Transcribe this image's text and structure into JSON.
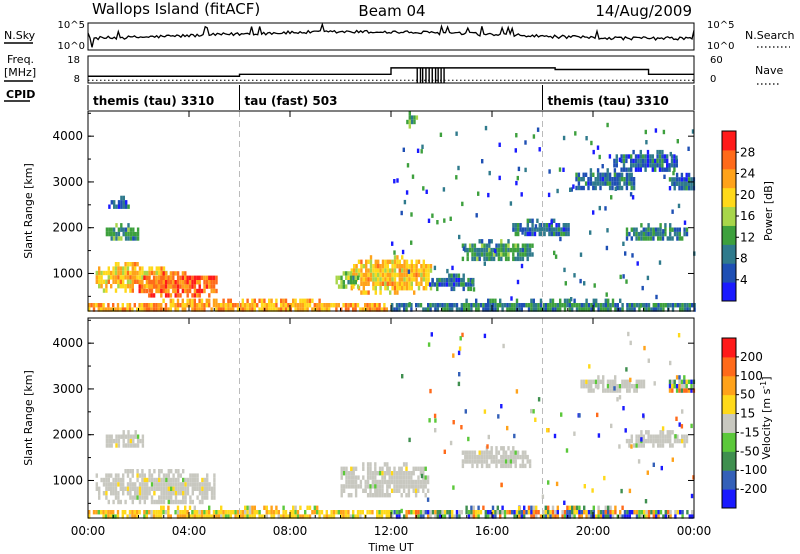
{
  "header": {
    "station": "Wallops Island (fitACF)",
    "beam": "Beam 04",
    "date": "14/Aug/2009"
  },
  "aux": {
    "nsky_label": "N.Sky",
    "nsearch_label": "N.Search",
    "freq_label_1": "Freq.",
    "freq_label_2": "[MHz]",
    "nave_label": "Nave",
    "cpid_label": "CPID",
    "nsky_ticks": [
      "10^5",
      "10^0"
    ],
    "nsearch_ticks": [
      "10^5",
      "10^0"
    ],
    "freq_ticks": [
      "18",
      "8"
    ],
    "nave_ticks": [
      "60",
      "0"
    ],
    "cpid_segments": [
      {
        "label": "themis (tau) 3310",
        "start_hour": 0
      },
      {
        "label": "tau (fast) 503",
        "start_hour": 6
      },
      {
        "label": "themis (tau) 3310",
        "start_hour": 18
      }
    ]
  },
  "chart_data": [
    {
      "type": "heatmap",
      "title": "Power",
      "xlabel": "Time UT",
      "ylabel": "Slant Range [km]",
      "x_ticks": [
        "00:00",
        "04:00",
        "08:00",
        "12:00",
        "16:00",
        "20:00",
        "00:00"
      ],
      "xlim_hours": [
        0,
        24
      ],
      "y_ticks": [
        "1000",
        "2000",
        "3000",
        "4000"
      ],
      "ylim_km": [
        180,
        4550
      ],
      "colorbar": {
        "label": "Power [dB]",
        "ticks": [
          "4",
          "8",
          "12",
          "16",
          "20",
          "24",
          "28"
        ],
        "range": [
          0,
          30
        ],
        "colors": [
          "#1a1aff",
          "#1e4fb4",
          "#2f7a8c",
          "#3da03d",
          "#a8d64a",
          "#ffd91a",
          "#ffa21a",
          "#ff6a1a",
          "#ff1a1a"
        ]
      },
      "echo_regions": [
        {
          "t0": 0.3,
          "t1": 3.2,
          "r0": 650,
          "r1": 1250,
          "level": 20
        },
        {
          "t0": 2.0,
          "t1": 5.1,
          "r0": 550,
          "r1": 1050,
          "level": 26
        },
        {
          "t0": 0.7,
          "t1": 2.0,
          "r0": 1750,
          "r1": 2100,
          "level": 10
        },
        {
          "t0": 0.8,
          "t1": 1.6,
          "r0": 2450,
          "r1": 2700,
          "level": 6
        },
        {
          "t0": 0.0,
          "t1": 12.0,
          "r0": 200,
          "r1": 450,
          "level": 22
        },
        {
          "t0": 10.4,
          "t1": 13.6,
          "r0": 600,
          "r1": 1400,
          "level": 20
        },
        {
          "t0": 9.8,
          "t1": 10.8,
          "r0": 750,
          "r1": 1050,
          "level": 14
        },
        {
          "t0": 12.0,
          "t1": 24.0,
          "r0": 200,
          "r1": 450,
          "level": 8
        },
        {
          "t0": 13.5,
          "t1": 15.3,
          "r0": 700,
          "r1": 1000,
          "level": 6
        },
        {
          "t0": 14.8,
          "t1": 17.6,
          "r0": 1300,
          "r1": 1750,
          "level": 10
        },
        {
          "t0": 16.8,
          "t1": 19.0,
          "r0": 1850,
          "r1": 2200,
          "level": 6
        },
        {
          "t0": 19.3,
          "t1": 21.6,
          "r0": 2850,
          "r1": 3300,
          "level": 6
        },
        {
          "t0": 20.8,
          "t1": 23.3,
          "r0": 3250,
          "r1": 3700,
          "level": 5
        },
        {
          "t0": 21.3,
          "t1": 23.7,
          "r0": 1750,
          "r1": 2100,
          "level": 8
        },
        {
          "t0": 23.0,
          "t1": 24.0,
          "r0": 2850,
          "r1": 3200,
          "level": 6
        },
        {
          "t0": 12.6,
          "t1": 13.0,
          "r0": 4250,
          "r1": 4550,
          "level": 12
        }
      ]
    },
    {
      "type": "heatmap",
      "title": "Velocity",
      "xlabel": "Time UT",
      "ylabel": "Slant Range [km]",
      "x_ticks": [
        "00:00",
        "04:00",
        "08:00",
        "12:00",
        "16:00",
        "20:00",
        "00:00"
      ],
      "xlim_hours": [
        0,
        24
      ],
      "y_ticks": [
        "1000",
        "2000",
        "3000",
        "4000"
      ],
      "ylim_km": [
        180,
        4550
      ],
      "colorbar": {
        "label": "Velocity [m s",
        "label_sup": "-1",
        "label_end": "]",
        "ticks": [
          "200",
          "100",
          "50",
          "15",
          "-15",
          "-50",
          "-100",
          "-200"
        ],
        "range": [
          -250,
          250
        ],
        "colors": [
          "#1a1aff",
          "#3460b8",
          "#3f8f4f",
          "#5bc83a",
          "#c8c8c0",
          "#ffd91a",
          "#ffa21a",
          "#ff6a1a",
          "#ff1a1a"
        ]
      },
      "echo_regions": [
        {
          "t0": 0.3,
          "t1": 5.0,
          "r0": 550,
          "r1": 1250,
          "kind": "ground"
        },
        {
          "t0": 0.7,
          "t1": 2.2,
          "r0": 1750,
          "r1": 2100,
          "kind": "ground"
        },
        {
          "t0": 0.0,
          "t1": 12.0,
          "r0": 200,
          "r1": 450,
          "kind": "orange"
        },
        {
          "t0": 10.0,
          "t1": 13.5,
          "r0": 650,
          "r1": 1400,
          "kind": "ground"
        },
        {
          "t0": 12.0,
          "t1": 24.0,
          "r0": 200,
          "r1": 450,
          "kind": "mixed"
        },
        {
          "t0": 14.8,
          "t1": 17.5,
          "r0": 1300,
          "r1": 1750,
          "kind": "ground"
        },
        {
          "t0": 19.5,
          "t1": 22.0,
          "r0": 3000,
          "r1": 3300,
          "kind": "ground"
        },
        {
          "t0": 21.3,
          "t1": 23.7,
          "r0": 1750,
          "r1": 2100,
          "kind": "ground"
        },
        {
          "t0": 23.0,
          "t1": 24.0,
          "r0": 2950,
          "r1": 3300,
          "kind": "mixed"
        }
      ]
    }
  ]
}
